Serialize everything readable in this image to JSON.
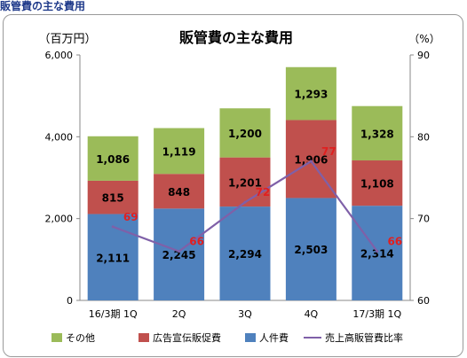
{
  "page": {
    "heading": "販管費の主な費用"
  },
  "chart_data": {
    "type": "bar",
    "stacked": true,
    "title": "販管費の主な費用",
    "y_unit_left": "（百万円）",
    "y_unit_right": "（%）",
    "categories": [
      "16/3期 1Q",
      "2Q",
      "3Q",
      "4Q",
      "17/3期 1Q"
    ],
    "ylim": [
      0,
      6000
    ],
    "y_ticks": [
      "0",
      "2,000",
      "4,000",
      "6,000"
    ],
    "y2lim": [
      60,
      90
    ],
    "y2_ticks": [
      "60",
      "70",
      "80",
      "90"
    ],
    "grid": false,
    "legend_position": "bottom",
    "series": [
      {
        "name": "人件費",
        "color": "#4f81bd",
        "values": [
          2111,
          2245,
          2294,
          2503,
          2314
        ],
        "labels": [
          "2,111",
          "2,245",
          "2,294",
          "2,503",
          "2,314"
        ]
      },
      {
        "name": "広告宣伝販促費",
        "color": "#c0504d",
        "values": [
          815,
          848,
          1201,
          1906,
          1108
        ],
        "labels": [
          "815",
          "848",
          "1,201",
          "1,906",
          "1,108"
        ]
      },
      {
        "name": "その他",
        "color": "#9bbb59",
        "values": [
          1086,
          1119,
          1200,
          1293,
          1328
        ],
        "labels": [
          "1,086",
          "1,119",
          "1,200",
          "1,293",
          "1,328"
        ]
      }
    ],
    "line_series": {
      "name": "売上高販管費比率",
      "color": "#7f60a8",
      "axis": "right",
      "values": [
        69,
        66,
        72,
        77,
        66
      ],
      "labels": [
        "69",
        "66",
        "72",
        "77",
        "66"
      ],
      "label_color": "#e02020"
    },
    "legend": [
      "その他",
      "広告宣伝販促費",
      "人件費",
      "売上高販管費比率"
    ]
  }
}
